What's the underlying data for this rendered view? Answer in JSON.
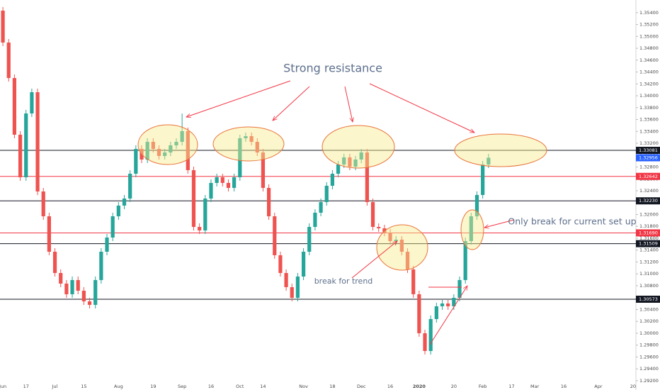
{
  "chart_data": {
    "type": "candlestick",
    "categories": [
      "Jun",
      null,
      null,
      null,
      "17",
      null,
      null,
      null,
      null,
      "Jul",
      null,
      null,
      null,
      null,
      "15",
      null,
      null,
      null,
      null,
      null,
      "Aug",
      null,
      null,
      null,
      null,
      null,
      "19",
      null,
      null,
      null,
      null,
      "Sep",
      null,
      null,
      null,
      null,
      "16",
      null,
      null,
      null,
      null,
      "Oct",
      null,
      null,
      null,
      "14",
      null,
      null,
      null,
      null,
      null,
      null,
      "Nov",
      null,
      null,
      null,
      null,
      "18",
      null,
      null,
      null,
      null,
      "Dec",
      null,
      null,
      null,
      null,
      "16",
      null,
      null,
      null,
      null,
      "2020",
      null,
      null,
      null,
      null,
      null,
      "20",
      null,
      null,
      null,
      null,
      "Feb",
      null,
      null,
      null,
      null,
      "17",
      null,
      null,
      null,
      "Mar",
      null,
      null,
      null,
      null,
      "16",
      null,
      null,
      null,
      null,
      null,
      "Apr",
      null,
      null,
      null,
      null,
      null,
      "20"
    ],
    "open": [
      1.35434,
      1.34896,
      1.34299,
      1.33344,
      1.32627,
      1.33702,
      1.3406,
      1.32388,
      1.3197,
      1.31373,
      1.31015,
      1.30836,
      1.30657,
      1.30896,
      1.30716,
      1.30537,
      1.30478,
      1.30896,
      1.31373,
      1.31612,
      1.3197,
      1.3215,
      1.32269,
      1.32687,
      1.33105,
      1.32926,
      1.33224,
      1.33105,
      1.32986,
      1.33045,
      1.33165,
      1.33224,
      1.33404,
      1.32747,
      1.31791,
      1.31732,
      1.32269,
      1.32532,
      1.32627,
      1.32532,
      1.32448,
      1.32627,
      1.33284,
      1.3332,
      1.33224,
      1.33045,
      1.32448,
      1.3197,
      1.31314,
      1.31015,
      1.30776,
      1.30597,
      1.30955,
      1.31373,
      1.31791,
      1.3203,
      1.32209,
      1.32484,
      1.32687,
      1.32842,
      1.32962,
      1.32806,
      1.32926,
      1.33045,
      1.32209,
      1.31791,
      1.31767,
      1.31696,
      1.31552,
      1.31576,
      1.31373,
      1.31075,
      1.30657,
      1.3,
      1.29701,
      1.30239,
      1.30454,
      1.30501,
      1.30454,
      1.30597,
      1.30896,
      1.31552,
      1.3197,
      1.32329,
      1.32842,
      null,
      null,
      null,
      null,
      null,
      null,
      null,
      null,
      null,
      null,
      null,
      null,
      null,
      null,
      null,
      null,
      null,
      null,
      null,
      null,
      null,
      null,
      null,
      null,
      null
    ],
    "high": [
      1.35494,
      1.34956,
      1.34359,
      1.33404,
      1.33762,
      1.3412,
      1.3412,
      1.32448,
      1.3203,
      1.31433,
      1.31075,
      1.30896,
      1.30956,
      1.30956,
      1.30776,
      1.30597,
      1.30956,
      1.31433,
      1.31672,
      1.3203,
      1.3221,
      1.32329,
      1.32747,
      1.33165,
      1.33165,
      1.33284,
      1.33284,
      1.33165,
      1.33105,
      1.33225,
      1.33284,
      1.337,
      1.33464,
      1.32807,
      1.31851,
      1.32329,
      1.32592,
      1.32687,
      1.32687,
      1.32592,
      1.32687,
      1.33344,
      1.3338,
      1.3338,
      1.33284,
      1.33105,
      1.32508,
      1.3203,
      1.31374,
      1.31075,
      1.30836,
      1.31015,
      1.31433,
      1.31851,
      1.3209,
      1.32269,
      1.32544,
      1.32747,
      1.32902,
      1.33022,
      1.33022,
      1.32986,
      1.33105,
      1.33105,
      1.32269,
      1.31851,
      1.31827,
      1.31756,
      1.31636,
      1.31636,
      1.31433,
      1.31135,
      1.30717,
      1.3006,
      1.30299,
      1.30514,
      1.30561,
      1.30561,
      1.30657,
      1.30956,
      1.31612,
      1.3203,
      1.32389,
      1.32902,
      1.33022,
      null,
      null,
      null,
      null,
      null,
      null,
      null,
      null,
      null,
      null,
      null,
      null,
      null,
      null,
      null,
      null,
      null,
      null,
      null,
      null,
      null,
      null,
      null,
      null,
      null
    ],
    "low": [
      1.34836,
      1.34239,
      1.33284,
      1.32567,
      1.32567,
      1.33642,
      1.32328,
      1.3191,
      1.31313,
      1.30955,
      1.30776,
      1.30597,
      1.30597,
      1.30656,
      1.30477,
      1.30418,
      1.30418,
      1.30836,
      1.31313,
      1.31552,
      1.3191,
      1.3209,
      1.32209,
      1.32627,
      1.32866,
      1.32866,
      1.33045,
      1.32926,
      1.32926,
      1.32985,
      1.33105,
      1.33164,
      1.32687,
      1.31731,
      1.31672,
      1.31672,
      1.32209,
      1.32472,
      1.32472,
      1.32388,
      1.32388,
      1.32567,
      1.33224,
      1.33164,
      1.32985,
      1.32388,
      1.3191,
      1.31254,
      1.30955,
      1.30716,
      1.30537,
      1.30537,
      1.30895,
      1.31313,
      1.31731,
      1.3197,
      1.32149,
      1.32424,
      1.32627,
      1.32782,
      1.32746,
      1.32746,
      1.32866,
      1.32149,
      1.31731,
      1.31707,
      1.31636,
      1.31492,
      1.31492,
      1.31313,
      1.31015,
      1.30597,
      1.2994,
      1.29641,
      1.29641,
      1.30179,
      1.30394,
      1.30394,
      1.30394,
      1.30537,
      1.30836,
      1.31492,
      1.3191,
      1.32269,
      1.32782,
      null,
      null,
      null,
      null,
      null,
      null,
      null,
      null,
      null,
      null,
      null,
      null,
      null,
      null,
      null,
      null,
      null,
      null,
      null,
      null,
      null,
      null,
      null,
      null,
      null
    ],
    "close": [
      1.34896,
      1.34299,
      1.33344,
      1.32627,
      1.33702,
      1.3406,
      1.32388,
      1.3197,
      1.31373,
      1.31015,
      1.30836,
      1.30657,
      1.30896,
      1.30716,
      1.30537,
      1.30478,
      1.30896,
      1.31373,
      1.31612,
      1.3197,
      1.3215,
      1.32269,
      1.32687,
      1.33105,
      1.32926,
      1.33224,
      1.33105,
      1.32986,
      1.33045,
      1.33165,
      1.33224,
      1.33404,
      1.32747,
      1.31791,
      1.31732,
      1.32269,
      1.32532,
      1.32627,
      1.32532,
      1.32448,
      1.32627,
      1.33284,
      1.3332,
      1.33224,
      1.33045,
      1.32448,
      1.3197,
      1.31314,
      1.31015,
      1.30776,
      1.30597,
      1.30955,
      1.31373,
      1.31791,
      1.3203,
      1.32209,
      1.32484,
      1.32687,
      1.32842,
      1.32962,
      1.32806,
      1.32926,
      1.33045,
      1.32209,
      1.31791,
      1.31767,
      1.31696,
      1.31552,
      1.31576,
      1.31373,
      1.31075,
      1.30657,
      1.3,
      1.29701,
      1.30239,
      1.30454,
      1.30501,
      1.30454,
      1.30597,
      1.30896,
      1.31552,
      1.3197,
      1.32329,
      1.32842,
      1.32956,
      null,
      null,
      null,
      null,
      null,
      null,
      null,
      null,
      null,
      null,
      null,
      null,
      null,
      null,
      null,
      null,
      null,
      null,
      null,
      null,
      null,
      null,
      null,
      null,
      null
    ],
    "up_color": "#26a69a",
    "down_color": "#ef5350",
    "ylim": [
      1.29044,
      1.35613
    ],
    "yticks": [
      {
        "value": 1.354,
        "label": "1.35400"
      },
      {
        "value": 1.352,
        "label": "1.35200"
      },
      {
        "value": 1.35,
        "label": "1.35000"
      },
      {
        "value": 1.348,
        "label": "1.34800"
      },
      {
        "value": 1.346,
        "label": "1.34600"
      },
      {
        "value": 1.344,
        "label": "1.34400"
      },
      {
        "value": 1.342,
        "label": "1.34200"
      },
      {
        "value": 1.34,
        "label": "1.34000"
      },
      {
        "value": 1.338,
        "label": "1.33800"
      },
      {
        "value": 1.336,
        "label": "1.33600"
      },
      {
        "value": 1.334,
        "label": "1.33400"
      },
      {
        "value": 1.332,
        "label": "1.33200"
      },
      {
        "value": 1.33,
        "label": "1.33000"
      },
      {
        "value": 1.328,
        "label": "1.32800"
      },
      {
        "value": 1.326,
        "label": "1.32600"
      },
      {
        "value": 1.324,
        "label": "1.32400"
      },
      {
        "value": 1.322,
        "label": "1.32200"
      },
      {
        "value": 1.32,
        "label": "1.32000"
      },
      {
        "value": 1.318,
        "label": "1.31800"
      },
      {
        "value": 1.316,
        "label": "1.31600"
      },
      {
        "value": 1.314,
        "label": "1.31400"
      },
      {
        "value": 1.312,
        "label": "1.31200"
      },
      {
        "value": 1.31,
        "label": "1.31000"
      },
      {
        "value": 1.308,
        "label": "1.30800"
      },
      {
        "value": 1.306,
        "label": "1.30600"
      },
      {
        "value": 1.304,
        "label": "1.30400"
      },
      {
        "value": 1.302,
        "label": "1.30200"
      },
      {
        "value": 1.3,
        "label": "1.30000"
      },
      {
        "value": 1.298,
        "label": "1.29800"
      },
      {
        "value": 1.296,
        "label": "1.29600"
      },
      {
        "value": 1.294,
        "label": "1.29400"
      },
      {
        "value": 1.292,
        "label": "1.29200"
      }
    ],
    "levels": [
      {
        "value": 1.33081,
        "label": "1.33081",
        "color": "#131722"
      },
      {
        "value": 1.32642,
        "label": "1.32642",
        "color": "#f23645"
      },
      {
        "value": 1.3223,
        "label": "1.32230",
        "color": "#131722"
      },
      {
        "value": 1.3169,
        "label": "1.31690",
        "color": "#f23645"
      },
      {
        "value": 1.31509,
        "label": "1.31509",
        "color": "#131722"
      },
      {
        "value": 1.30573,
        "label": "1.30573",
        "color": "#131722"
      }
    ],
    "last_price": {
      "value": 1.32956,
      "label": "1.32956",
      "color": "#2962ff"
    },
    "annotations": [
      "Strong resistance",
      "Only break for current set up",
      "break for trend"
    ]
  }
}
